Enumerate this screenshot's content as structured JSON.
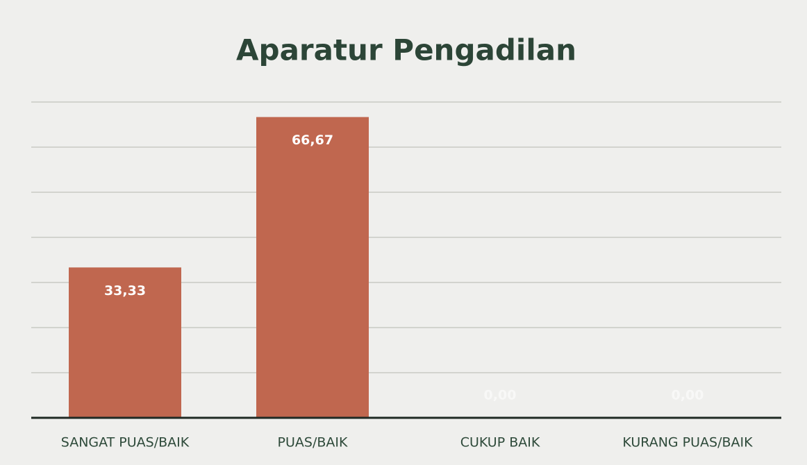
{
  "chart_data": {
    "type": "bar",
    "title": "Aparatur Pengadilan",
    "categories": [
      "SANGAT PUAS/BAIK",
      "PUAS/BAIK",
      "CUKUP BAIK",
      "KURANG PUAS/BAIK"
    ],
    "values": [
      33.33,
      66.67,
      0,
      0
    ],
    "value_labels": [
      "33,33",
      "66,67",
      "0,00",
      "0,00"
    ],
    "color": "#c0674f",
    "ylim": [
      0,
      70
    ],
    "yticks": [
      0,
      10,
      20,
      30,
      40,
      50,
      60,
      70
    ],
    "grid": true
  }
}
